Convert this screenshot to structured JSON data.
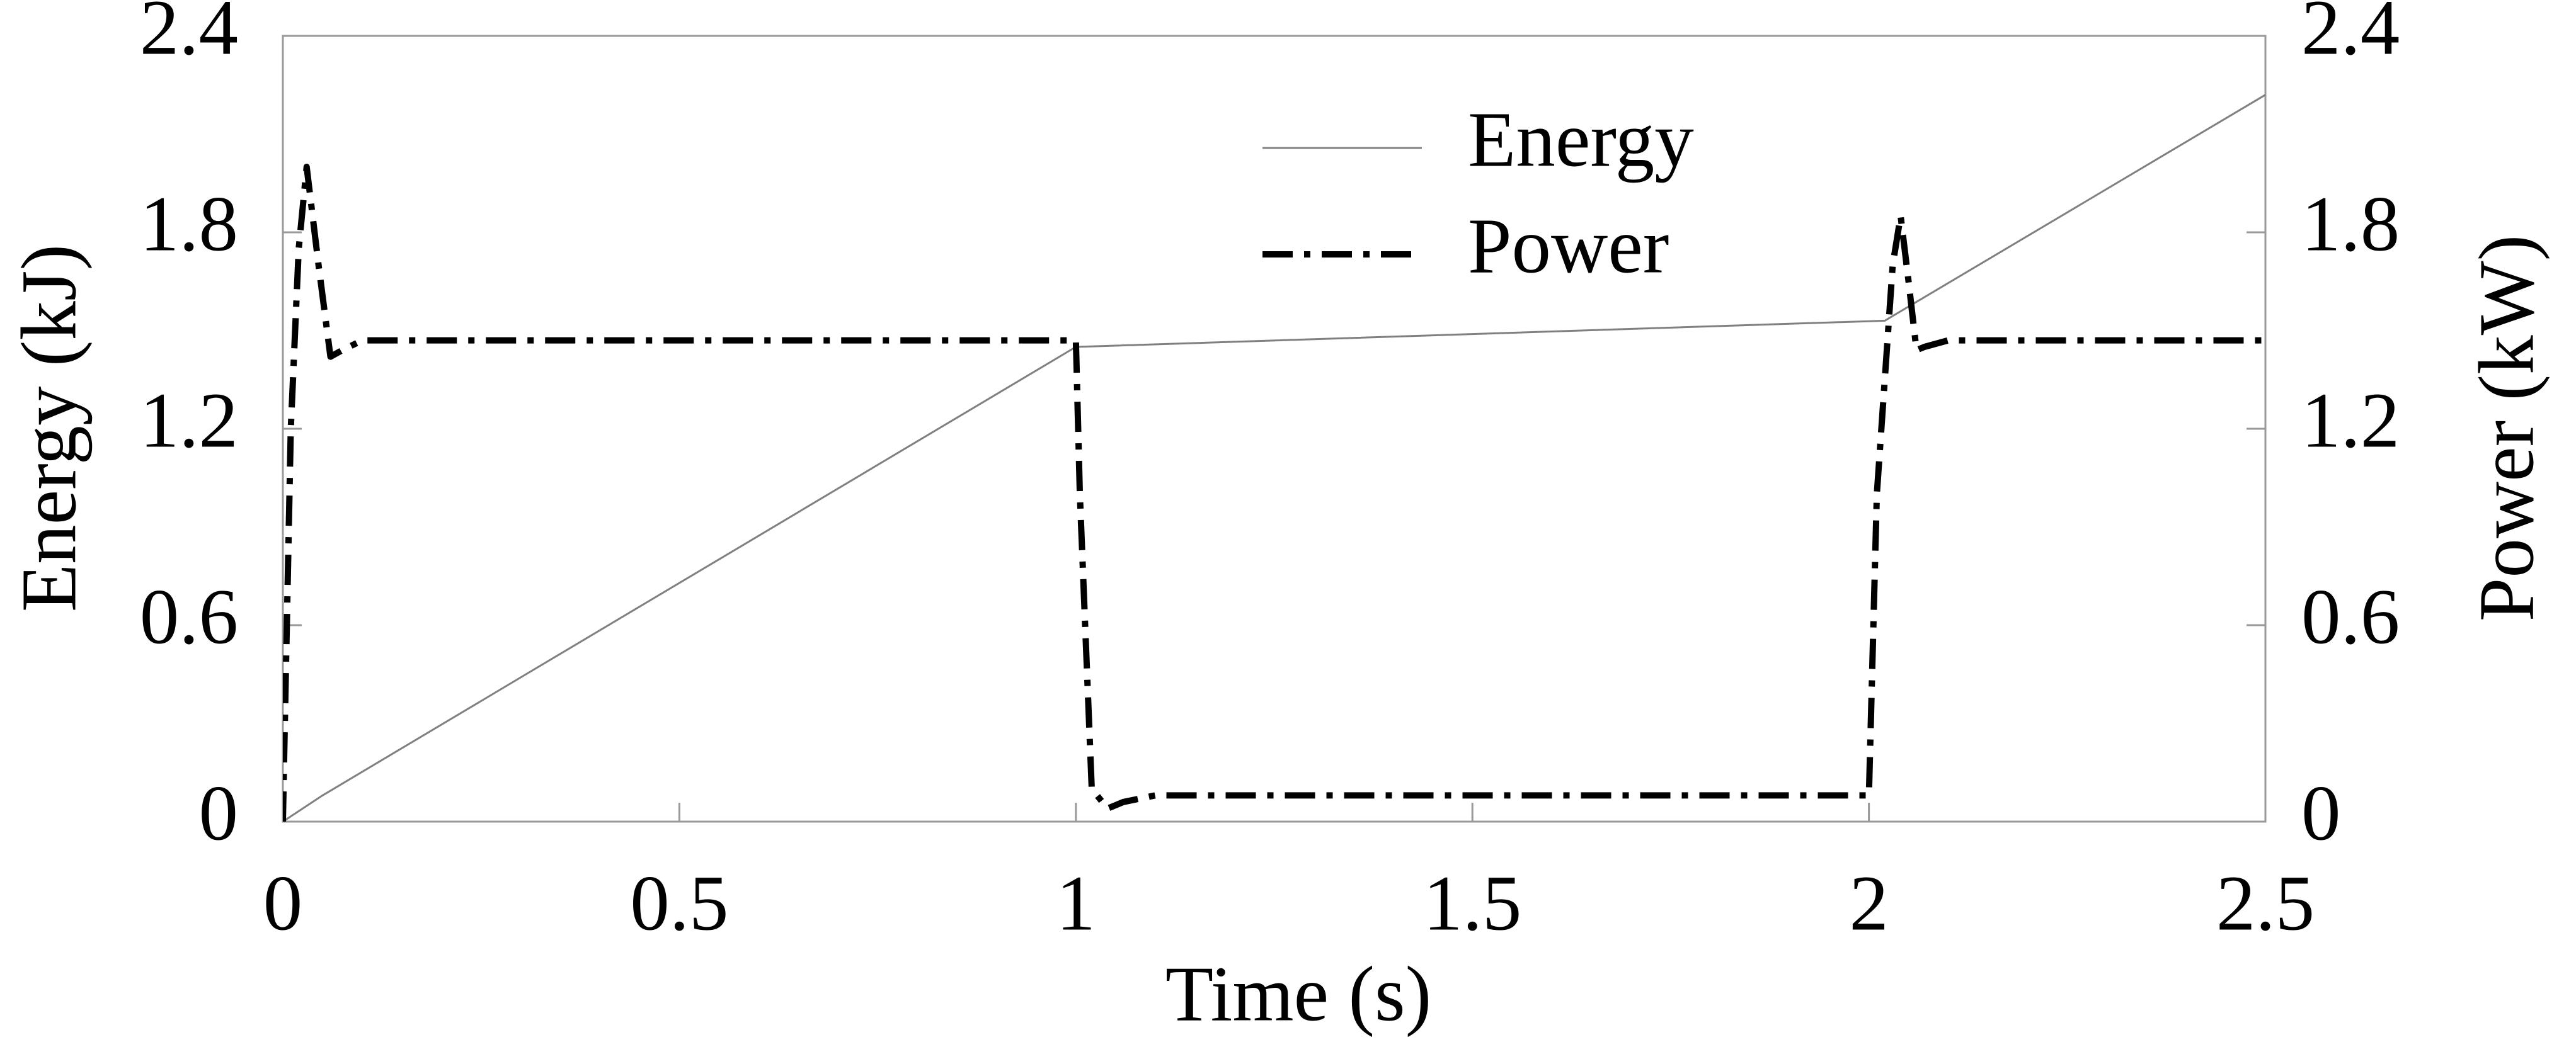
{
  "chart_data": {
    "type": "line",
    "x_label": "Time (s)",
    "y_label": "Energy (kJ)",
    "y2_label": "Power (kW)",
    "xlim": [
      0,
      2.5
    ],
    "xticks": [
      0,
      0.5,
      1,
      1.5,
      2,
      2.5
    ],
    "ylim": [
      0,
      2.4
    ],
    "yticks": [
      0,
      0.6,
      1.2,
      1.8,
      2.4
    ],
    "y2lim": [
      0,
      2.4
    ],
    "y2ticks": [
      0,
      0.6,
      1.2,
      1.8,
      2.4
    ],
    "legend": "top-center",
    "series": [
      {
        "name": "Energy",
        "color": "#808080",
        "linestyle": "solid",
        "x": [
          0,
          0.05,
          1.0,
          2.02,
          2.5
        ],
        "values": [
          0,
          0.08,
          1.45,
          1.53,
          2.22
        ]
      },
      {
        "name": "Power",
        "color": "#000000",
        "linestyle": "dashdot",
        "axis": "y2",
        "x": [
          0,
          0.01,
          0.02,
          0.03,
          0.045,
          0.06,
          0.075,
          0.1,
          1.0,
          1.005,
          1.02,
          1.04,
          1.06,
          1.1,
          2.0,
          2.01,
          2.03,
          2.04,
          2.05,
          2.06,
          2.07,
          2.1,
          2.5
        ],
        "values": [
          0,
          1.2,
          1.75,
          2.0,
          1.7,
          1.42,
          1.44,
          1.47,
          1.47,
          1.0,
          0.1,
          0.04,
          0.06,
          0.08,
          0.08,
          1.0,
          1.7,
          1.85,
          1.65,
          1.44,
          1.45,
          1.47,
          1.47
        ]
      }
    ]
  }
}
